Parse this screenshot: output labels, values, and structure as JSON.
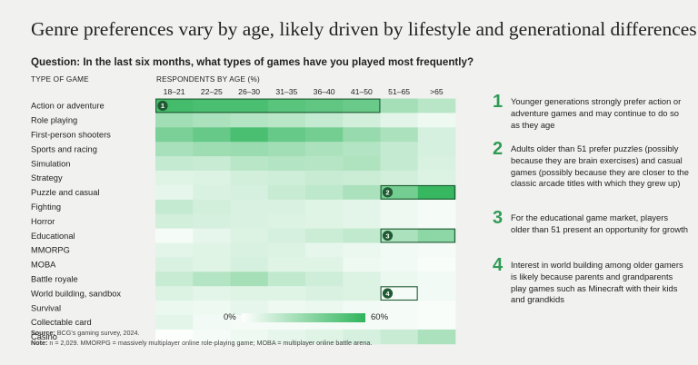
{
  "title": "Genre preferences vary by age, likely driven by lifestyle and generational differences",
  "question": "Question: In the last six months, what types of games have you played most frequently?",
  "type_header": "TYPE OF GAME",
  "age_header": "RESPONDENTS BY AGE (%)",
  "legend": {
    "low": "0%",
    "high": "60%",
    "color_low": "#ffffff",
    "color_high": "#2fb55b"
  },
  "chart_data": {
    "type": "heatmap",
    "title": "",
    "x_label": "RESPONDENTS BY AGE (%)",
    "y_label": "TYPE OF GAME",
    "value_range": [
      0,
      60
    ],
    "columns": [
      "18–21",
      "22–25",
      "26–30",
      "31–35",
      "36–40",
      "41–50",
      "51–65",
      ">65"
    ],
    "rows": [
      {
        "label": "Action or adventure",
        "values": [
          54,
          52,
          52,
          48,
          46,
          43,
          26,
          20
        ]
      },
      {
        "label": "Role playing",
        "values": [
          27,
          24,
          22,
          20,
          17,
          13,
          8,
          5
        ]
      },
      {
        "label": "First-person shooters",
        "values": [
          38,
          44,
          52,
          44,
          40,
          30,
          24,
          12
        ]
      },
      {
        "label": "Sports and racing",
        "values": [
          25,
          28,
          29,
          27,
          24,
          22,
          17,
          12
        ]
      },
      {
        "label": "Simulation",
        "values": [
          17,
          16,
          20,
          22,
          21,
          23,
          17,
          11
        ]
      },
      {
        "label": "Strategy",
        "values": [
          9,
          10,
          13,
          14,
          16,
          15,
          13,
          10
        ]
      },
      {
        "label": "Puzzle and casual",
        "values": [
          7,
          11,
          12,
          16,
          19,
          24,
          40,
          58
        ]
      },
      {
        "label": "Fighting",
        "values": [
          17,
          13,
          11,
          11,
          9,
          8,
          5,
          3
        ]
      },
      {
        "label": "Horror",
        "values": [
          13,
          12,
          11,
          10,
          9,
          8,
          5,
          3
        ]
      },
      {
        "label": "Educational",
        "values": [
          3,
          7,
          10,
          12,
          15,
          18,
          24,
          33
        ]
      },
      {
        "label": "MMORPG",
        "values": [
          8,
          9,
          11,
          10,
          7,
          6,
          4,
          3
        ]
      },
      {
        "label": "MOBA",
        "values": [
          11,
          9,
          12,
          9,
          9,
          5,
          4,
          2
        ]
      },
      {
        "label": "Battle royale",
        "values": [
          16,
          22,
          26,
          18,
          14,
          10,
          6,
          4
        ]
      },
      {
        "label": "World building, sandbox",
        "values": [
          10,
          8,
          9,
          9,
          11,
          10,
          3,
          4
        ]
      },
      {
        "label": "Survival",
        "values": [
          6,
          5,
          7,
          5,
          6,
          4,
          3,
          2
        ]
      },
      {
        "label": "Collectable card",
        "values": [
          8,
          4,
          3,
          3,
          3,
          3,
          3,
          2
        ]
      },
      {
        "label": "Casino",
        "values": [
          1,
          3,
          5,
          7,
          9,
          12,
          16,
          24
        ]
      }
    ],
    "callouts": [
      {
        "number": "1",
        "row": 0,
        "col_start": 0,
        "col_end": 5
      },
      {
        "number": "2",
        "row": 6,
        "col_start": 6,
        "col_end": 7
      },
      {
        "number": "3",
        "row": 9,
        "col_start": 6,
        "col_end": 7
      },
      {
        "number": "4",
        "row": 13,
        "col_start": 6,
        "col_end": 6
      }
    ]
  },
  "notes": [
    {
      "number": "1",
      "text": "Younger generations strongly prefer action or adventure games and may continue to do so as they age"
    },
    {
      "number": "2",
      "text": "Adults older than 51 prefer puzzles (possibly because they are brain exercises) and casual games (possibly because they are closer to the classic arcade titles with which they grew up)"
    },
    {
      "number": "3",
      "text": "For the educational game market, players older than 51 present an opportunity for growth"
    },
    {
      "number": "4",
      "text": "Interest in world building among older gamers is likely because parents and grandparents play games such as Minecraft with their kids and grandkids"
    }
  ],
  "footer": {
    "source_label": "Source:",
    "source_text": " BCG's gaming survey, 2024.",
    "note_label": "Note:",
    "note_text": " n = 2,029. MMORPG = massively multiplayer online role-playing game; MOBA = multiplayer online battle arena."
  }
}
